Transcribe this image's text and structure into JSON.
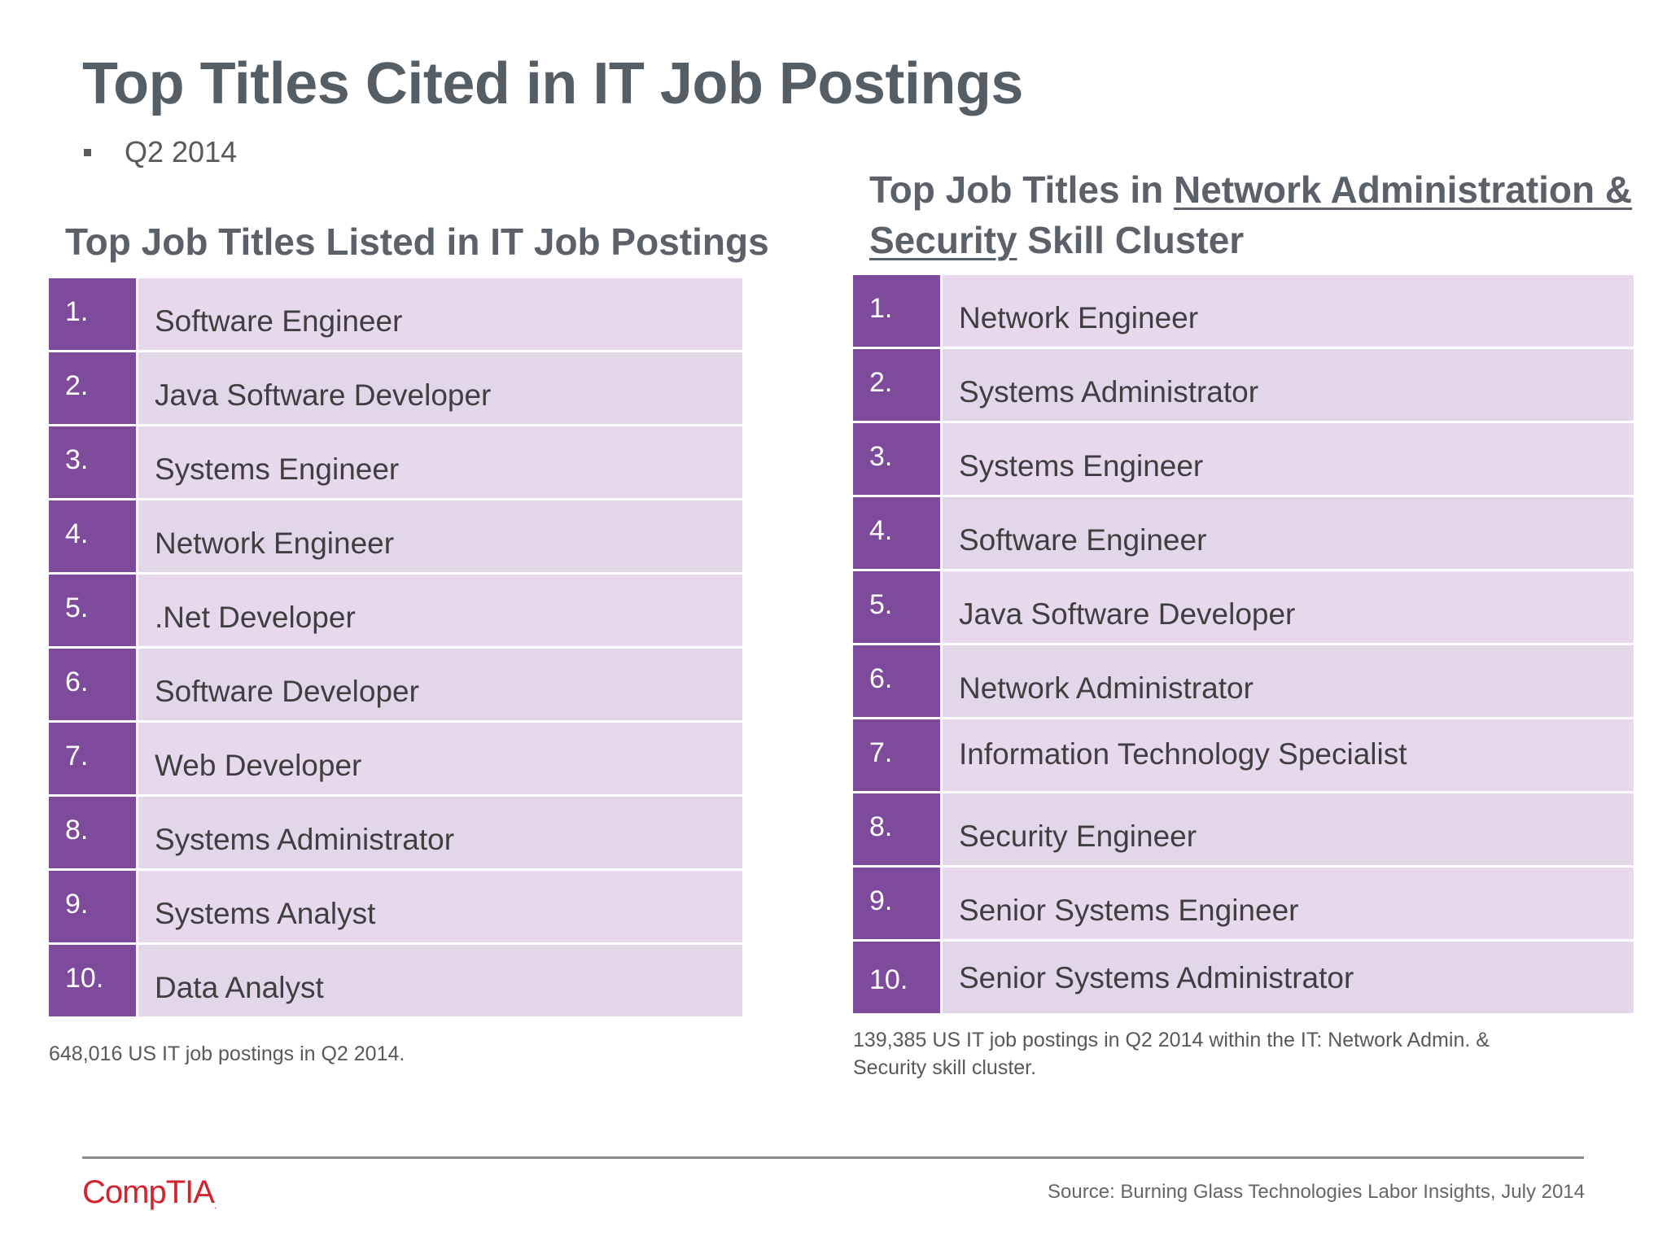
{
  "title": "Top Titles Cited in IT Job Postings",
  "period": "Q2 2014",
  "left": {
    "heading": "Top Job Titles Listed in IT Job Postings",
    "items": [
      {
        "rank": "1.",
        "title": "Software Engineer"
      },
      {
        "rank": "2.",
        "title": "Java Software Developer"
      },
      {
        "rank": "3.",
        "title": "Systems Engineer"
      },
      {
        "rank": "4.",
        "title": "Network Engineer"
      },
      {
        "rank": "5.",
        "title": ".Net Developer"
      },
      {
        "rank": "6.",
        "title": "Software Developer"
      },
      {
        "rank": "7.",
        "title": "Web Developer"
      },
      {
        "rank": "8.",
        "title": "Systems Administrator"
      },
      {
        "rank": "9.",
        "title": "Systems Analyst"
      },
      {
        "rank": "10.",
        "title": "Data Analyst"
      }
    ],
    "note": "648,016 US IT job postings in Q2 2014."
  },
  "right": {
    "heading_prefix": "Top Job Titles in ",
    "heading_link1": "Network Administration &",
    "heading_link2": "Security",
    "heading_suffix": " Skill Cluster",
    "items": [
      {
        "rank": "1.",
        "title": "Network Engineer"
      },
      {
        "rank": "2.",
        "title": "Systems Administrator"
      },
      {
        "rank": "3.",
        "title": "Systems Engineer"
      },
      {
        "rank": "4.",
        "title": "Software Engineer"
      },
      {
        "rank": "5.",
        "title": "Java Software Developer"
      },
      {
        "rank": "6.",
        "title": "Network Administrator"
      },
      {
        "rank": "7.",
        "title": "Information Technology Specialist"
      },
      {
        "rank": "8.",
        "title": "Security Engineer"
      },
      {
        "rank": "9.",
        "title": "Senior Systems Engineer"
      },
      {
        "rank": "10.",
        "title": "Senior Systems Administrator"
      }
    ],
    "note_line1": "139,385 US IT job postings in Q2 2014 within the IT: Network Admin. &",
    "note_line2": "Security skill cluster."
  },
  "footer": {
    "logo": "CompTIA",
    "logo_mark": ".",
    "source": "Source: Burning Glass Technologies Labor Insights, July 2014"
  },
  "colors": {
    "rank_bg": "#7d4a9c",
    "title_bg": "#e6d9ec",
    "logo": "#d4232e"
  }
}
